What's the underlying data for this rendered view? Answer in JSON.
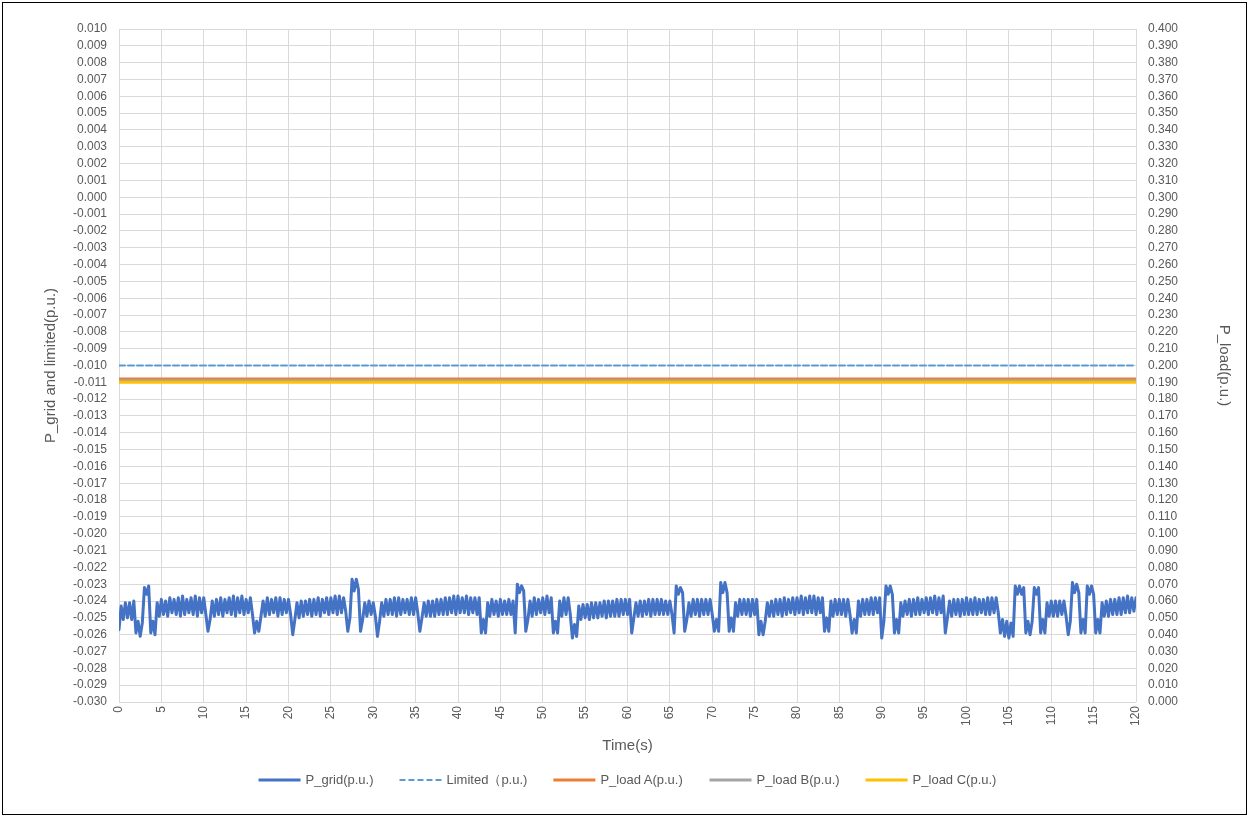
{
  "chart_data": {
    "type": "line",
    "xlabel": "Time(s)",
    "ylabel": "P_grid and limited(p.u.)",
    "y2label": "P_load(p.u.)",
    "xlim": [
      0,
      120
    ],
    "xticks": [
      0,
      5,
      10,
      15,
      20,
      25,
      30,
      35,
      40,
      45,
      50,
      55,
      60,
      65,
      70,
      75,
      80,
      85,
      90,
      95,
      100,
      105,
      110,
      115,
      120
    ],
    "ylim": [
      -0.03,
      0.01
    ],
    "yticks": [
      {
        "value": -0.03,
        "label": "-0.030"
      },
      -0.029,
      -0.028,
      -0.027,
      -0.026,
      -0.025,
      -0.024,
      -0.023,
      -0.022,
      -0.021,
      {
        "value": -0.02,
        "label": "-0.020"
      },
      -0.019,
      -0.018,
      -0.017,
      -0.016,
      -0.015,
      -0.014,
      -0.013,
      -0.012,
      -0.011,
      {
        "value": -0.01,
        "label": "-0.010"
      },
      -0.009,
      -0.008,
      -0.007,
      -0.006,
      -0.005,
      -0.004,
      -0.003,
      -0.002,
      -0.001,
      {
        "value": 0,
        "label": "0.000"
      },
      0.001,
      0.002,
      0.003,
      0.004,
      0.005,
      0.006,
      0.007,
      0.008,
      0.009,
      {
        "value": 0.01,
        "label": "0.010"
      }
    ],
    "y2lim": [
      0,
      0.4
    ],
    "y2ticks": [
      {
        "value": 0,
        "label": "0.000"
      },
      {
        "value": 0.01,
        "label": "0.010"
      },
      {
        "value": 0.02,
        "label": "0.020"
      },
      {
        "value": 0.03,
        "label": "0.030"
      },
      {
        "value": 0.04,
        "label": "0.040"
      },
      {
        "value": 0.05,
        "label": "0.050"
      },
      {
        "value": 0.06,
        "label": "0.060"
      },
      {
        "value": 0.07,
        "label": "0.070"
      },
      {
        "value": 0.08,
        "label": "0.080"
      },
      {
        "value": 0.09,
        "label": "0.090"
      },
      {
        "value": 0.1,
        "label": "0.100"
      },
      {
        "value": 0.11,
        "label": "0.110"
      },
      {
        "value": 0.12,
        "label": "0.120"
      },
      {
        "value": 0.13,
        "label": "0.130"
      },
      {
        "value": 0.14,
        "label": "0.140"
      },
      {
        "value": 0.15,
        "label": "0.150"
      },
      {
        "value": 0.16,
        "label": "0.160"
      },
      {
        "value": 0.17,
        "label": "0.170"
      },
      {
        "value": 0.18,
        "label": "0.180"
      },
      {
        "value": 0.19,
        "label": "0.190"
      },
      {
        "value": 0.2,
        "label": "0.200"
      },
      {
        "value": 0.21,
        "label": "0.210"
      },
      {
        "value": 0.22,
        "label": "0.220"
      },
      {
        "value": 0.23,
        "label": "0.230"
      },
      {
        "value": 0.24,
        "label": "0.240"
      },
      {
        "value": 0.25,
        "label": "0.250"
      },
      {
        "value": 0.26,
        "label": "0.260"
      },
      {
        "value": 0.27,
        "label": "0.270"
      },
      {
        "value": 0.28,
        "label": "0.280"
      },
      {
        "value": 0.29,
        "label": "0.290"
      },
      {
        "value": 0.3,
        "label": "0.300"
      },
      {
        "value": 0.31,
        "label": "0.310"
      },
      {
        "value": 0.32,
        "label": "0.320"
      },
      {
        "value": 0.33,
        "label": "0.330"
      },
      {
        "value": 0.34,
        "label": "0.340"
      },
      {
        "value": 0.35,
        "label": "0.350"
      },
      {
        "value": 0.36,
        "label": "0.360"
      },
      {
        "value": 0.37,
        "label": "0.370"
      },
      {
        "value": 0.38,
        "label": "0.380"
      },
      {
        "value": 0.39,
        "label": "0.390"
      },
      {
        "value": 0.4,
        "label": "0.400"
      }
    ],
    "grid": true,
    "legend": "bottom",
    "marker": "none",
    "series": [
      {
        "name": "P_grid(p.u.)",
        "color": "#4472c4",
        "x": [
          0,
          0.25,
          0.5,
          0.75,
          1,
          1.25,
          1.5,
          1.75,
          2,
          2.25,
          2.5,
          2.75,
          3,
          3.25,
          3.5,
          3.75,
          4,
          4.25,
          4.5,
          4.75,
          5,
          5.25,
          5.5,
          5.75,
          6,
          6.25,
          6.5,
          6.75,
          7,
          7.25,
          7.5,
          7.75,
          8,
          8.25,
          8.5,
          8.75,
          9,
          9.25,
          9.5,
          9.75,
          10,
          10.25,
          10.5,
          10.75,
          11,
          11.25,
          11.5,
          11.75,
          12,
          12.25,
          12.5,
          12.75,
          13,
          13.25,
          13.5,
          13.75,
          14,
          14.25,
          14.5,
          14.75,
          15,
          15.25,
          15.5,
          15.75,
          16,
          16.25,
          16.5,
          16.75,
          17,
          17.25,
          17.5,
          17.75,
          18,
          18.25,
          18.5,
          18.75,
          19,
          19.25,
          19.5,
          19.75,
          20,
          20.25,
          20.5,
          20.75,
          21,
          21.25,
          21.5,
          21.75,
          22,
          22.25,
          22.5,
          22.75,
          23,
          23.25,
          23.5,
          23.75,
          24,
          24.25,
          24.5,
          24.75,
          25,
          25.25,
          25.5,
          25.75,
          26,
          26.25,
          26.5,
          26.75,
          27,
          27.25,
          27.5,
          27.75,
          28,
          28.25,
          28.5,
          28.75,
          29,
          29.25,
          29.5,
          29.75,
          30,
          30.25,
          30.5,
          30.75,
          31,
          31.25,
          31.5,
          31.75,
          32,
          32.25,
          32.5,
          32.75,
          33,
          33.25,
          33.5,
          33.75,
          34,
          34.25,
          34.5,
          34.75,
          35,
          35.25,
          35.5,
          35.75,
          36,
          36.25,
          36.5,
          36.75,
          37,
          37.25,
          37.5,
          37.75,
          38,
          38.25,
          38.5,
          38.75,
          39,
          39.25,
          39.5,
          39.75,
          40,
          40.25,
          40.5,
          40.75,
          41,
          41.25,
          41.5,
          41.75,
          42,
          42.25,
          42.5,
          42.75,
          43,
          43.25,
          43.5,
          43.75,
          44,
          44.25,
          44.5,
          44.75,
          45,
          45.25,
          45.5,
          45.75,
          46,
          46.25,
          46.5,
          46.75,
          47,
          47.25,
          47.5,
          47.75,
          48,
          48.25,
          48.5,
          48.75,
          49,
          49.25,
          49.5,
          49.75,
          50,
          50.25,
          50.5,
          50.75,
          51,
          51.25,
          51.5,
          51.75,
          52,
          52.25,
          52.5,
          52.75,
          53,
          53.25,
          53.5,
          53.75,
          54,
          54.25,
          54.5,
          54.75,
          55,
          55.25,
          55.5,
          55.75,
          56,
          56.25,
          56.5,
          56.75,
          57,
          57.25,
          57.5,
          57.75,
          58,
          58.25,
          58.5,
          58.75,
          59,
          59.25,
          59.5,
          59.75,
          60,
          60.25,
          60.5,
          60.75,
          61,
          61.25,
          61.5,
          61.75,
          62,
          62.25,
          62.5,
          62.75,
          63,
          63.25,
          63.5,
          63.75,
          64,
          64.25,
          64.5,
          64.75,
          65,
          65.25,
          65.5,
          65.75,
          66,
          66.25,
          66.5,
          66.75,
          67,
          67.25,
          67.5,
          67.75,
          68,
          68.25,
          68.5,
          68.75,
          69,
          69.25,
          69.5,
          69.75,
          70,
          70.25,
          70.5,
          70.75,
          71,
          71.25,
          71.5,
          71.75,
          72,
          72.25,
          72.5,
          72.75,
          73,
          73.25,
          73.5,
          73.75,
          74,
          74.25,
          74.5,
          74.75,
          75,
          75.25,
          75.5,
          75.75,
          76,
          76.25,
          76.5,
          76.75,
          77,
          77.25,
          77.5,
          77.75,
          78,
          78.25,
          78.5,
          78.75,
          79,
          79.25,
          79.5,
          79.75,
          80,
          80.25,
          80.5,
          80.75,
          81,
          81.25,
          81.5,
          81.75,
          82,
          82.25,
          82.5,
          82.75,
          83,
          83.25,
          83.5,
          83.75,
          84,
          84.25,
          84.5,
          84.75,
          85,
          85.25,
          85.5,
          85.75,
          86,
          86.25,
          86.5,
          86.75,
          87,
          87.25,
          87.5,
          87.75,
          88,
          88.25,
          88.5,
          88.75,
          89,
          89.25,
          89.5,
          89.75,
          90,
          90.25,
          90.5,
          90.75,
          91,
          91.25,
          91.5,
          91.75,
          92,
          92.25,
          92.5,
          92.75,
          93,
          93.25,
          93.5,
          93.75,
          94,
          94.25,
          94.5,
          94.75,
          95,
          95.25,
          95.5,
          95.75,
          96,
          96.25,
          96.5,
          96.75,
          97,
          97.25,
          97.5,
          97.75,
          98,
          98.25,
          98.5,
          98.75,
          99,
          99.25,
          99.5,
          99.75,
          100,
          100.25,
          100.5,
          100.75,
          101,
          101.25,
          101.5,
          101.75,
          102,
          102.25,
          102.5,
          102.75,
          103,
          103.25,
          103.5,
          103.75,
          104,
          104.25,
          104.5,
          104.75,
          105,
          105.25,
          105.5,
          105.75,
          106,
          106.25,
          106.5,
          106.75,
          107,
          107.25,
          107.5,
          107.75,
          108,
          108.25,
          108.5,
          108.75,
          109,
          109.25,
          109.5,
          109.75,
          110,
          110.25,
          110.5,
          110.75,
          111,
          111.25,
          111.5,
          111.75,
          112,
          112.25,
          112.5,
          112.75,
          113,
          113.25,
          113.5,
          113.75,
          114,
          114.25,
          114.5,
          114.75,
          115,
          115.25,
          115.5,
          115.75,
          116,
          116.25,
          116.5,
          116.75,
          117,
          117.25,
          117.5,
          117.75,
          118,
          118.25,
          118.5,
          118.75,
          119,
          119.25,
          119.5,
          119.75,
          120
        ],
        "values": [
          -0.0257,
          -0.0243,
          -0.0251,
          -0.0241,
          -0.025,
          -0.0241,
          -0.0251,
          -0.024,
          -0.0259,
          -0.0252,
          -0.0261,
          -0.0253,
          -0.0232,
          -0.0236,
          -0.0231,
          -0.0259,
          -0.0252,
          -0.026,
          -0.0241,
          -0.0249,
          -0.0239,
          -0.0248,
          -0.024,
          -0.0249,
          -0.0238,
          -0.0247,
          -0.0239,
          -0.0248,
          -0.0238,
          -0.0249,
          -0.0237,
          -0.0248,
          -0.0239,
          -0.0247,
          -0.0238,
          -0.0248,
          -0.0237,
          -0.0249,
          -0.0238,
          -0.0247,
          -0.0238,
          -0.0248,
          -0.0258,
          -0.0251,
          -0.024,
          -0.0249,
          -0.0239,
          -0.0248,
          -0.0238,
          -0.0249,
          -0.0239,
          -0.0247,
          -0.0238,
          -0.0248,
          -0.0237,
          -0.0249,
          -0.0238,
          -0.0247,
          -0.0237,
          -0.0248,
          -0.0239,
          -0.0247,
          -0.0238,
          -0.0248,
          -0.0259,
          -0.0252,
          -0.0258,
          -0.0249,
          -0.024,
          -0.0249,
          -0.0238,
          -0.0248,
          -0.0239,
          -0.0247,
          -0.0238,
          -0.0249,
          -0.0238,
          -0.0248,
          -0.0239,
          -0.0247,
          -0.0239,
          -0.0248,
          -0.026,
          -0.0251,
          -0.0241,
          -0.025,
          -0.024,
          -0.0249,
          -0.024,
          -0.0248,
          -0.0239,
          -0.0249,
          -0.0239,
          -0.0248,
          -0.0238,
          -0.0249,
          -0.0239,
          -0.0247,
          -0.0238,
          -0.0248,
          -0.0238,
          -0.0247,
          -0.0237,
          -0.0248,
          -0.0237,
          -0.0247,
          -0.0238,
          -0.0246,
          -0.0258,
          -0.025,
          -0.0227,
          -0.0234,
          -0.0227,
          -0.0233,
          -0.0258,
          -0.0251,
          -0.0241,
          -0.0249,
          -0.024,
          -0.0248,
          -0.0241,
          -0.0249,
          -0.0261,
          -0.0252,
          -0.0241,
          -0.0249,
          -0.0239,
          -0.0248,
          -0.0239,
          -0.0248,
          -0.0238,
          -0.0249,
          -0.0238,
          -0.0248,
          -0.0239,
          -0.0247,
          -0.0239,
          -0.0248,
          -0.0238,
          -0.0248,
          -0.0238,
          -0.0247,
          -0.0258,
          -0.025,
          -0.0241,
          -0.0249,
          -0.024,
          -0.0249,
          -0.024,
          -0.0249,
          -0.0239,
          -0.0248,
          -0.0239,
          -0.0248,
          -0.0238,
          -0.0248,
          -0.0238,
          -0.0247,
          -0.0237,
          -0.0248,
          -0.0237,
          -0.0247,
          -0.0238,
          -0.0247,
          -0.0237,
          -0.0248,
          -0.0238,
          -0.0247,
          -0.0238,
          -0.0248,
          -0.0238,
          -0.0259,
          -0.0251,
          -0.0259,
          -0.0241,
          -0.0249,
          -0.0239,
          -0.0248,
          -0.024,
          -0.0249,
          -0.0239,
          -0.0248,
          -0.024,
          -0.0248,
          -0.0239,
          -0.0248,
          -0.024,
          -0.0259,
          -0.023,
          -0.0235,
          -0.0231,
          -0.0234,
          -0.0258,
          -0.0251,
          -0.024,
          -0.0249,
          -0.0238,
          -0.0248,
          -0.0239,
          -0.0247,
          -0.0238,
          -0.0248,
          -0.0237,
          -0.0247,
          -0.0238,
          -0.0259,
          -0.0252,
          -0.0259,
          -0.024,
          -0.0249,
          -0.0238,
          -0.0248,
          -0.0238,
          -0.0248,
          -0.0262,
          -0.0254,
          -0.0261,
          -0.0243,
          -0.0251,
          -0.0242,
          -0.025,
          -0.0242,
          -0.0251,
          -0.0241,
          -0.025,
          -0.0241,
          -0.025,
          -0.0241,
          -0.0249,
          -0.024,
          -0.025,
          -0.024,
          -0.0249,
          -0.024,
          -0.0249,
          -0.0239,
          -0.0249,
          -0.0239,
          -0.0248,
          -0.0239,
          -0.0248,
          -0.0239,
          -0.0259,
          -0.025,
          -0.0241,
          -0.0249,
          -0.024,
          -0.0249,
          -0.024,
          -0.0248,
          -0.0239,
          -0.0249,
          -0.0239,
          -0.0248,
          -0.0239,
          -0.0248,
          -0.0239,
          -0.0248,
          -0.024,
          -0.0248,
          -0.024,
          -0.0248,
          -0.0259,
          -0.0231,
          -0.0236,
          -0.0232,
          -0.0235,
          -0.0258,
          -0.0251,
          -0.0241,
          -0.0249,
          -0.0239,
          -0.0248,
          -0.0239,
          -0.0249,
          -0.0239,
          -0.0248,
          -0.0239,
          -0.0248,
          -0.0239,
          -0.0248,
          -0.0258,
          -0.0251,
          -0.0258,
          -0.0229,
          -0.0235,
          -0.0229,
          -0.0235,
          -0.0258,
          -0.025,
          -0.0258,
          -0.0241,
          -0.0249,
          -0.0239,
          -0.0248,
          -0.0239,
          -0.0248,
          -0.0239,
          -0.0249,
          -0.0239,
          -0.0248,
          -0.0239,
          -0.026,
          -0.0252,
          -0.026,
          -0.0252,
          -0.0241,
          -0.0249,
          -0.024,
          -0.0249,
          -0.0239,
          -0.0248,
          -0.0239,
          -0.0249,
          -0.0238,
          -0.0248,
          -0.0239,
          -0.0247,
          -0.0238,
          -0.0248,
          -0.0238,
          -0.0247,
          -0.0237,
          -0.0248,
          -0.0238,
          -0.0247,
          -0.0237,
          -0.0247,
          -0.0237,
          -0.0248,
          -0.0238,
          -0.0247,
          -0.0238,
          -0.0258,
          -0.025,
          -0.0258,
          -0.024,
          -0.0249,
          -0.0239,
          -0.0248,
          -0.0239,
          -0.0248,
          -0.0239,
          -0.0249,
          -0.0239,
          -0.0248,
          -0.0259,
          -0.0251,
          -0.0259,
          -0.024,
          -0.0249,
          -0.0239,
          -0.0248,
          -0.0239,
          -0.0248,
          -0.0238,
          -0.0248,
          -0.0238,
          -0.0247,
          -0.0238,
          -0.0262,
          -0.0252,
          -0.0231,
          -0.0236,
          -0.0231,
          -0.0236,
          -0.0259,
          -0.0251,
          -0.0259,
          -0.0241,
          -0.0249,
          -0.024,
          -0.0248,
          -0.0239,
          -0.0249,
          -0.0239,
          -0.0248,
          -0.0238,
          -0.0248,
          -0.0239,
          -0.0247,
          -0.0238,
          -0.0248,
          -0.0238,
          -0.0247,
          -0.0237,
          -0.0248,
          -0.0238,
          -0.0247,
          -0.0237,
          -0.0259,
          -0.025,
          -0.024,
          -0.0249,
          -0.0239,
          -0.0248,
          -0.0239,
          -0.0249,
          -0.0239,
          -0.0248,
          -0.0238,
          -0.0248,
          -0.0239,
          -0.0248,
          -0.0238,
          -0.0248,
          -0.0239,
          -0.0247,
          -0.0239,
          -0.0248,
          -0.0238,
          -0.0248,
          -0.0238,
          -0.0247,
          -0.0238,
          -0.0247,
          -0.0259,
          -0.0251,
          -0.0261,
          -0.0252,
          -0.0262,
          -0.0253,
          -0.0261,
          -0.0231,
          -0.0236,
          -0.0231,
          -0.0236,
          -0.0232,
          -0.0259,
          -0.0252,
          -0.026,
          -0.0252,
          -0.0232,
          -0.0236,
          -0.0232,
          -0.0259,
          -0.0251,
          -0.0259,
          -0.0241,
          -0.0249,
          -0.024,
          -0.0249,
          -0.024,
          -0.0249,
          -0.024,
          -0.0248,
          -0.024,
          -0.0249,
          -0.026,
          -0.0252,
          -0.0229,
          -0.0235,
          -0.023,
          -0.0235,
          -0.0259,
          -0.0251,
          -0.0259,
          -0.0231,
          -0.0236,
          -0.0231,
          -0.0236,
          -0.0259,
          -0.0251,
          -0.0259,
          -0.0241,
          -0.0249,
          -0.024,
          -0.0249,
          -0.0239,
          -0.0248,
          -0.0239,
          -0.0248,
          -0.0238,
          -0.0248,
          -0.0238,
          -0.0247,
          -0.0237,
          -0.0247,
          -0.0238,
          -0.0246,
          -0.0238
        ]
      },
      {
        "name": "Limited（p.u.)",
        "color": "#5b9bd5",
        "line_style": "dashed",
        "x": [
          0,
          120
        ],
        "values": [
          -0.01,
          -0.01
        ]
      },
      {
        "name": "P_load A(p.u.)",
        "color": "#ed7d31",
        "axis": "y2",
        "x": [
          0,
          30,
          60,
          90,
          120
        ],
        "values": [
          0.192,
          0.192,
          0.192,
          0.192,
          0.192
        ]
      },
      {
        "name": "P_load B(p.u.)",
        "color": "#a5a5a5",
        "axis": "y2",
        "x": [
          0,
          30,
          60,
          90,
          120
        ],
        "values": [
          0.191,
          0.191,
          0.191,
          0.191,
          0.191
        ]
      },
      {
        "name": "P_load C(p.u.)",
        "color": "#ffc000",
        "axis": "y2",
        "x": [
          0,
          30,
          60,
          90,
          120
        ],
        "values": [
          0.19,
          0.19,
          0.19,
          0.19,
          0.19
        ]
      }
    ]
  }
}
